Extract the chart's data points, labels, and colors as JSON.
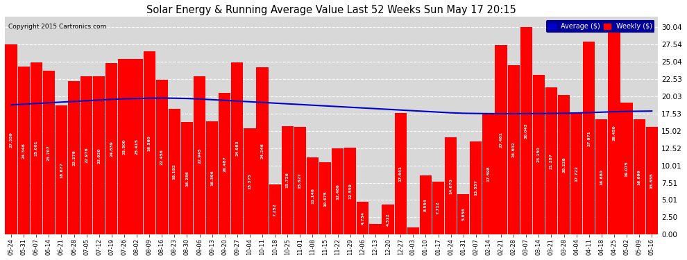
{
  "title": "Solar Energy & Running Average Value Last 52 Weeks Sun May 17 20:15",
  "copyright": "Copyright 2015 Cartronics.com",
  "ylabel_right_values": [
    0.0,
    2.5,
    5.01,
    7.51,
    10.01,
    12.52,
    15.02,
    17.53,
    20.03,
    22.53,
    25.04,
    27.54,
    30.04
  ],
  "bar_color": "#ff0000",
  "avg_line_color": "#0000cc",
  "background_color": "#ffffff",
  "plot_bg_color": "#d8d8d8",
  "grid_color": "#ffffff",
  "categories": [
    "05-24",
    "05-31",
    "06-07",
    "06-14",
    "06-21",
    "06-28",
    "07-05",
    "07-12",
    "07-19",
    "07-26",
    "08-02",
    "08-09",
    "08-16",
    "08-23",
    "08-30",
    "09-06",
    "09-13",
    "09-20",
    "09-27",
    "10-04",
    "10-11",
    "10-18",
    "10-25",
    "11-01",
    "11-08",
    "11-15",
    "11-22",
    "11-29",
    "12-06",
    "12-13",
    "12-20",
    "12-27",
    "01-03",
    "01-10",
    "01-17",
    "01-24",
    "01-31",
    "02-07",
    "02-14",
    "02-21",
    "02-28",
    "03-07",
    "03-14",
    "03-21",
    "03-28",
    "04-04",
    "04-11",
    "04-18",
    "04-25",
    "05-02",
    "05-09",
    "05-16"
  ],
  "weekly_values": [
    27.559,
    24.346,
    25.001,
    23.707,
    18.677,
    22.278,
    22.976,
    22.92,
    24.839,
    25.5,
    25.415,
    26.56,
    22.456,
    18.182,
    16.286,
    22.945,
    16.396,
    20.487,
    24.983,
    15.375,
    24.246,
    7.252,
    15.726,
    15.627,
    11.146,
    10.475,
    12.486,
    12.559,
    4.734,
    1.529,
    4.312,
    17.641,
    1.006,
    8.554,
    7.712,
    14.07,
    5.856,
    13.537,
    17.598,
    27.481,
    24.602,
    30.043,
    23.15,
    21.287,
    20.228,
    17.722,
    27.971,
    16.68,
    29.45,
    19.075,
    16.699,
    15.655
  ],
  "avg_values": [
    18.8,
    18.9,
    19.0,
    19.1,
    19.2,
    19.3,
    19.4,
    19.5,
    19.6,
    19.68,
    19.72,
    19.76,
    19.78,
    19.76,
    19.72,
    19.65,
    19.55,
    19.45,
    19.35,
    19.25,
    19.15,
    19.05,
    18.95,
    18.85,
    18.75,
    18.65,
    18.55,
    18.45,
    18.35,
    18.25,
    18.15,
    18.05,
    17.95,
    17.85,
    17.75,
    17.65,
    17.58,
    17.55,
    17.53,
    17.52,
    17.52,
    17.53,
    17.54,
    17.55,
    17.58,
    17.62,
    17.68,
    17.74,
    17.8,
    17.85,
    17.88,
    17.9
  ],
  "legend_avg_color": "#0000cc",
  "legend_weekly_color": "#ff0000",
  "ylim_max": 31.54,
  "ylim_min": 0.0
}
